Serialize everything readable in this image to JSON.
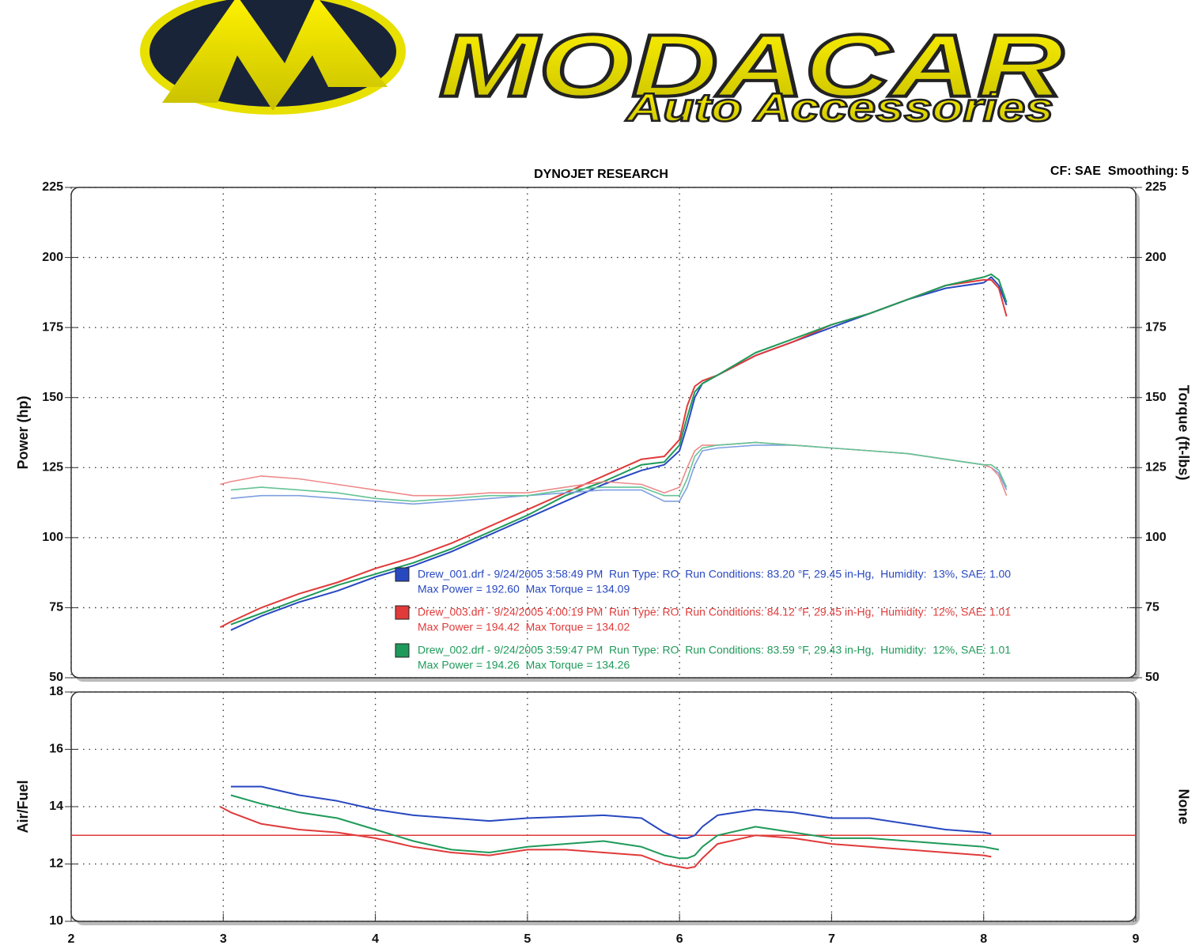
{
  "logo": {
    "brand": "MODACAR",
    "tagline": "Auto Accessories"
  },
  "chart_data": [
    {
      "type": "line",
      "title": "DYNOJET RESEARCH",
      "subtitle": "CF: SAE  Smoothing: 5",
      "y_label": "Power (hp)",
      "y2_label": "Torque (ft-lbs)",
      "x": [
        2.98,
        3.05,
        3.25,
        3.5,
        3.75,
        4.0,
        4.25,
        4.5,
        4.75,
        5.0,
        5.25,
        5.5,
        5.75,
        5.9,
        6.0,
        6.05,
        6.1,
        6.15,
        6.25,
        6.5,
        6.75,
        7.0,
        7.25,
        7.5,
        7.75,
        8.0,
        8.05,
        8.1,
        8.15
      ],
      "xlim": [
        2,
        9
      ],
      "ylim": [
        50,
        225
      ],
      "yticks": [
        50,
        75,
        100,
        125,
        150,
        175,
        200,
        225
      ],
      "y2lim": [
        50,
        225
      ],
      "y2ticks": [
        50,
        75,
        100,
        125,
        150,
        175,
        200,
        225
      ],
      "grid": true,
      "series": [
        {
          "name": "Drew_001.drf - 9/24/2005 3:58:49 PM  Run Type: RO  Run Conditions: 83.20 °F, 29.45 in-Hg,  Humidity:  13%, SAE: 1.00",
          "summary": "Max Power = 192.60  Max Torque = 134.09",
          "color": "#2848c0",
          "values": [
            null,
            67,
            72,
            77,
            81,
            86,
            90,
            95,
            101,
            107,
            113,
            119,
            124,
            126,
            131,
            140,
            150,
            155,
            158,
            165,
            170,
            175,
            180,
            185,
            189,
            191,
            193,
            190,
            183
          ]
        },
        {
          "name": "Drew_003.drf - 9/24/2005 4:00:19 PM  Run Type: RO  Run Conditions: 84.12 °F, 29.45 in-Hg,  Humidity:  12%, SAE: 1.01",
          "summary": "Max Power = 194.42  Max Torque = 134.02",
          "color": "#e03a3a",
          "values": [
            68,
            70,
            75,
            80,
            84,
            89,
            93,
            98,
            104,
            110,
            116,
            122,
            128,
            129,
            135,
            147,
            154,
            156,
            158,
            165,
            170,
            176,
            180,
            185,
            190,
            192,
            192,
            189,
            179
          ]
        },
        {
          "name": "Drew_002.drf - 9/24/2005 3:59:47 PM  Run Type: RO  Run Conditions: 83.59 °F, 29.43 in-Hg,  Humidity:  12%, SAE: 1.01",
          "summary": "Max Power = 194.26  Max Torque = 134.26",
          "color": "#1f9a5a",
          "values": [
            null,
            69,
            73,
            78,
            83,
            87,
            91,
            96,
            102,
            108,
            115,
            120,
            126,
            127,
            133,
            143,
            152,
            155,
            158,
            166,
            171,
            176,
            180,
            185,
            190,
            193,
            194,
            192,
            184
          ]
        },
        {
          "axis": "y2",
          "color": "#7f9fe0",
          "values": [
            null,
            114,
            115,
            115,
            114,
            113,
            112,
            113,
            114,
            115,
            116,
            117,
            117,
            113,
            113,
            118,
            126,
            131,
            132,
            133,
            133,
            132,
            131,
            130,
            128,
            126,
            125,
            123,
            117
          ]
        },
        {
          "axis": "y2",
          "color": "#ee8a8a",
          "values": [
            119,
            120,
            122,
            121,
            119,
            117,
            115,
            115,
            116,
            116,
            118,
            120,
            119,
            116,
            118,
            125,
            131,
            133,
            133,
            134,
            133,
            132,
            131,
            130,
            128,
            126,
            125,
            122,
            115
          ]
        },
        {
          "axis": "y2",
          "color": "#64c496",
          "values": [
            null,
            117,
            118,
            117,
            116,
            114,
            113,
            114,
            115,
            115,
            117,
            118,
            118,
            115,
            115,
            121,
            129,
            132,
            133,
            134,
            133,
            132,
            131,
            130,
            128,
            126,
            126,
            124,
            118
          ]
        }
      ]
    },
    {
      "type": "line",
      "y_label": "Air/Fuel",
      "y2_label": "None",
      "x": [
        2.98,
        3.05,
        3.25,
        3.5,
        3.75,
        4.0,
        4.25,
        4.5,
        4.75,
        5.0,
        5.25,
        5.5,
        5.75,
        5.9,
        6.0,
        6.05,
        6.1,
        6.15,
        6.25,
        6.5,
        6.75,
        7.0,
        7.25,
        7.5,
        7.75,
        8.0,
        8.05,
        8.1,
        8.15
      ],
      "xlim": [
        2,
        9
      ],
      "xticks": [
        2,
        3,
        4,
        5,
        6,
        7,
        8,
        9
      ],
      "ylim": [
        10,
        18
      ],
      "yticks": [
        10,
        12,
        14,
        16,
        18
      ],
      "grid": true,
      "reference": {
        "value": 13,
        "color": "#e03a3a"
      },
      "series": [
        {
          "color": "#2848c0",
          "values": [
            null,
            14.7,
            14.7,
            14.4,
            14.2,
            13.9,
            13.7,
            13.6,
            13.5,
            13.6,
            13.65,
            13.7,
            13.6,
            13.1,
            12.9,
            12.9,
            13.0,
            13.3,
            13.7,
            13.9,
            13.8,
            13.6,
            13.6,
            13.4,
            13.2,
            13.1,
            13.05,
            null,
            null
          ]
        },
        {
          "color": "#e03a3a",
          "values": [
            14.0,
            13.8,
            13.4,
            13.2,
            13.1,
            12.9,
            12.6,
            12.4,
            12.3,
            12.5,
            12.5,
            12.4,
            12.3,
            12.0,
            11.9,
            11.85,
            11.9,
            12.2,
            12.7,
            13.0,
            12.9,
            12.7,
            12.6,
            12.5,
            12.4,
            12.3,
            12.25,
            null,
            null
          ]
        },
        {
          "color": "#1f9a5a",
          "values": [
            null,
            14.4,
            14.1,
            13.8,
            13.6,
            13.2,
            12.8,
            12.5,
            12.4,
            12.6,
            12.7,
            12.8,
            12.6,
            12.3,
            12.2,
            12.2,
            12.3,
            12.6,
            13.0,
            13.3,
            13.1,
            12.9,
            12.9,
            12.8,
            12.7,
            12.6,
            12.55,
            12.5,
            null
          ]
        }
      ]
    }
  ]
}
